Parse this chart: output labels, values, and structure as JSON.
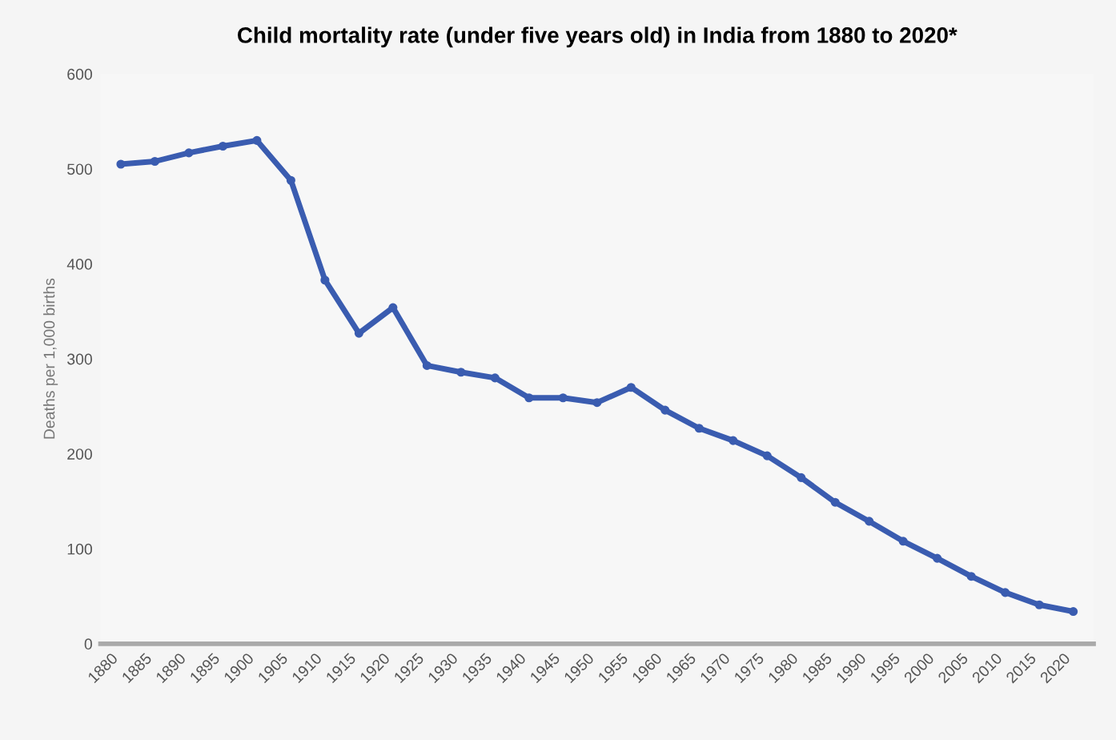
{
  "chart_data": {
    "type": "line",
    "title": "Child mortality rate (under five years old) in India from 1880 to 2020*",
    "ylabel": "Deaths per 1,000 births",
    "categories": [
      "1880",
      "1885",
      "1890",
      "1895",
      "1900",
      "1905",
      "1910",
      "1915",
      "1920",
      "1925",
      "1930",
      "1935",
      "1940",
      "1945",
      "1950",
      "1955",
      "1960",
      "1965",
      "1970",
      "1975",
      "1980",
      "1985",
      "1990",
      "1995",
      "2000",
      "2005",
      "2010",
      "2015",
      "2020"
    ],
    "series": [
      {
        "color": "#3a5cb0",
        "values": [
          505,
          508,
          517,
          524,
          530,
          488,
          383,
          327,
          354,
          293,
          286,
          280,
          259,
          259,
          254,
          270,
          246,
          227,
          214,
          198,
          175,
          149,
          129,
          108,
          90,
          71,
          54,
          41,
          34
        ]
      }
    ],
    "ylim": [
      0,
      600
    ],
    "yticks": [
      0,
      100,
      200,
      300,
      400,
      500,
      600
    ],
    "grid": false,
    "legend": false,
    "marker": "circle",
    "line_style": "solid"
  }
}
